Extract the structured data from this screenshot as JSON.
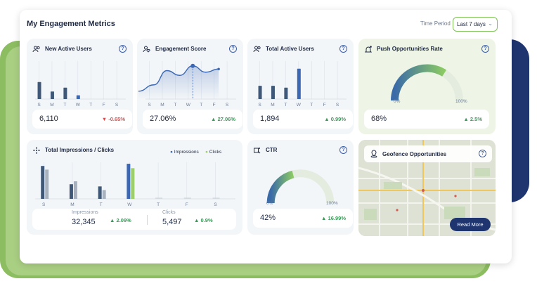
{
  "header": {
    "title": "My Engagement Metrics",
    "time_period_label": "Time Period",
    "time_period_value": "Last 7 days"
  },
  "days": [
    "S",
    "M",
    "T",
    "W",
    "T",
    "F",
    "S"
  ],
  "cards": {
    "new_active_users": {
      "title": "New Active Users",
      "value": "6,110",
      "delta": "-0.65%"
    },
    "engagement_score": {
      "title": "Engagement Score",
      "value": "27.06%",
      "delta": "27.06%"
    },
    "total_active_users": {
      "title": "Total Active Users",
      "value": "1,894",
      "delta": "0.99%"
    },
    "push_rate": {
      "title": "Push Opportunities Rate",
      "value": "68%",
      "delta": "2.5%",
      "gauge_min": "0%",
      "gauge_max": "100%"
    },
    "impressions_clicks": {
      "title": "Total Impressions / Clicks",
      "legend_impressions": "Impressions",
      "legend_clicks": "Clicks",
      "impressions_label": "Impressions",
      "impressions_value": "32,345",
      "impressions_delta": "2.09%",
      "clicks_label": "Clicks",
      "clicks_value": "5,497",
      "clicks_delta": "0.9%"
    },
    "ctr": {
      "title": "CTR",
      "value": "42%",
      "delta": "16.99%",
      "gauge_min": "0%",
      "gauge_max": "100%"
    },
    "geofence": {
      "title": "Geofence Opportunities",
      "button": "Read More"
    }
  },
  "chart_data": [
    {
      "type": "bar",
      "title": "New Active Users",
      "categories": [
        "S",
        "M",
        "T",
        "W",
        "T",
        "F",
        "S"
      ],
      "values": [
        18,
        8,
        12,
        4,
        0,
        0,
        0
      ],
      "highlight_index": 3
    },
    {
      "type": "area",
      "title": "Engagement Score",
      "categories": [
        "S",
        "M",
        "T",
        "W",
        "T",
        "F",
        "S"
      ],
      "values": [
        10,
        18,
        36,
        30,
        42,
        34,
        38
      ],
      "highlight_index": 4
    },
    {
      "type": "bar",
      "title": "Total Active Users",
      "categories": [
        "S",
        "M",
        "T",
        "W",
        "T",
        "F",
        "S"
      ],
      "values": [
        14,
        14,
        12,
        32,
        0,
        0,
        0
      ],
      "highlight_index": 3
    },
    {
      "type": "bar",
      "title": "Total Impressions / Clicks",
      "categories": [
        "S",
        "M",
        "T",
        "W",
        "T",
        "F",
        "S"
      ],
      "series": [
        {
          "name": "Impressions",
          "values": [
            45,
            20,
            17,
            48,
            0,
            0,
            0
          ]
        },
        {
          "name": "Clicks",
          "values": [
            40,
            24,
            12,
            42,
            0,
            0,
            0
          ]
        }
      ]
    },
    {
      "type": "gauge",
      "title": "Push Opportunities Rate",
      "values": [
        68
      ]
    },
    {
      "type": "gauge",
      "title": "CTR",
      "values": [
        42
      ]
    }
  ],
  "colors": {
    "dark_bar": "#3f5877",
    "highlight_bar": "#3b67b3",
    "clicks_bar": "#a8b2bf",
    "clicks_highlight": "#9ccf6a",
    "up": "#3b9a5a",
    "down": "#e04a4a"
  }
}
